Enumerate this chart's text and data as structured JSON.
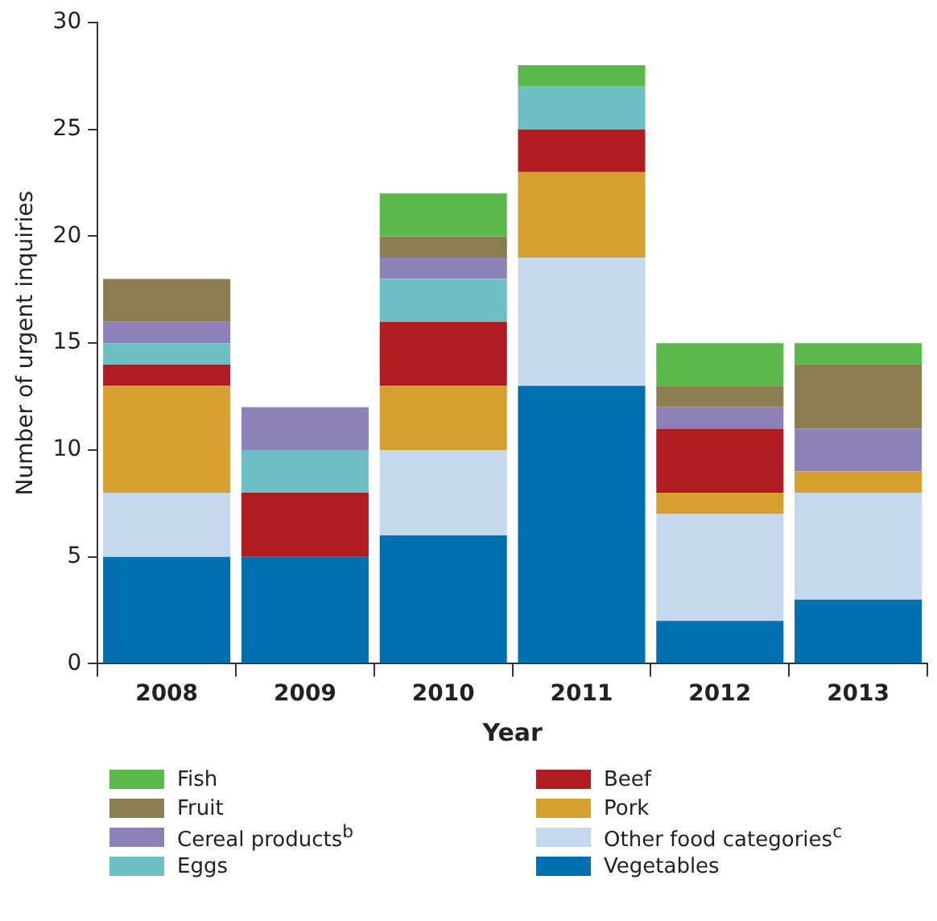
{
  "chart_data": {
    "type": "bar",
    "stacked": true,
    "xlabel": "Year",
    "ylabel": "Number of urgent inquiries",
    "categories": [
      "2008",
      "2009",
      "2010",
      "2011",
      "2012",
      "2013"
    ],
    "ylim": [
      0,
      30
    ],
    "yticks": [
      0,
      5,
      10,
      15,
      20,
      25,
      30
    ],
    "grid": false,
    "legend": "bottom",
    "series": [
      {
        "name": "Vegetables",
        "color": "#0070b0",
        "values": [
          5,
          5,
          6,
          13,
          2,
          3
        ]
      },
      {
        "name": "Other food categories$^{c}$",
        "color": "#c5d9ee",
        "values": [
          3,
          0,
          4,
          6,
          5,
          5
        ]
      },
      {
        "name": "Pork",
        "color": "#d6a030",
        "values": [
          5,
          0,
          3,
          4,
          1,
          1
        ]
      },
      {
        "name": "Beef",
        "color": "#b01c22",
        "values": [
          1,
          3,
          3,
          2,
          3,
          0
        ]
      },
      {
        "name": "Eggs",
        "color": "#6cc0c4",
        "values": [
          1,
          2,
          2,
          2,
          0,
          0
        ]
      },
      {
        "name": "Cereal products$^{b}$",
        "color": "#8c82b8",
        "values": [
          1,
          2,
          1,
          0,
          1,
          2
        ]
      },
      {
        "name": "Fruit",
        "color": "#8c7d50",
        "values": [
          2,
          0,
          1,
          0,
          1,
          3
        ]
      },
      {
        "name": "Fish",
        "color": "#5ab94a",
        "values": [
          0,
          0,
          2,
          1,
          2,
          1
        ]
      }
    ]
  }
}
